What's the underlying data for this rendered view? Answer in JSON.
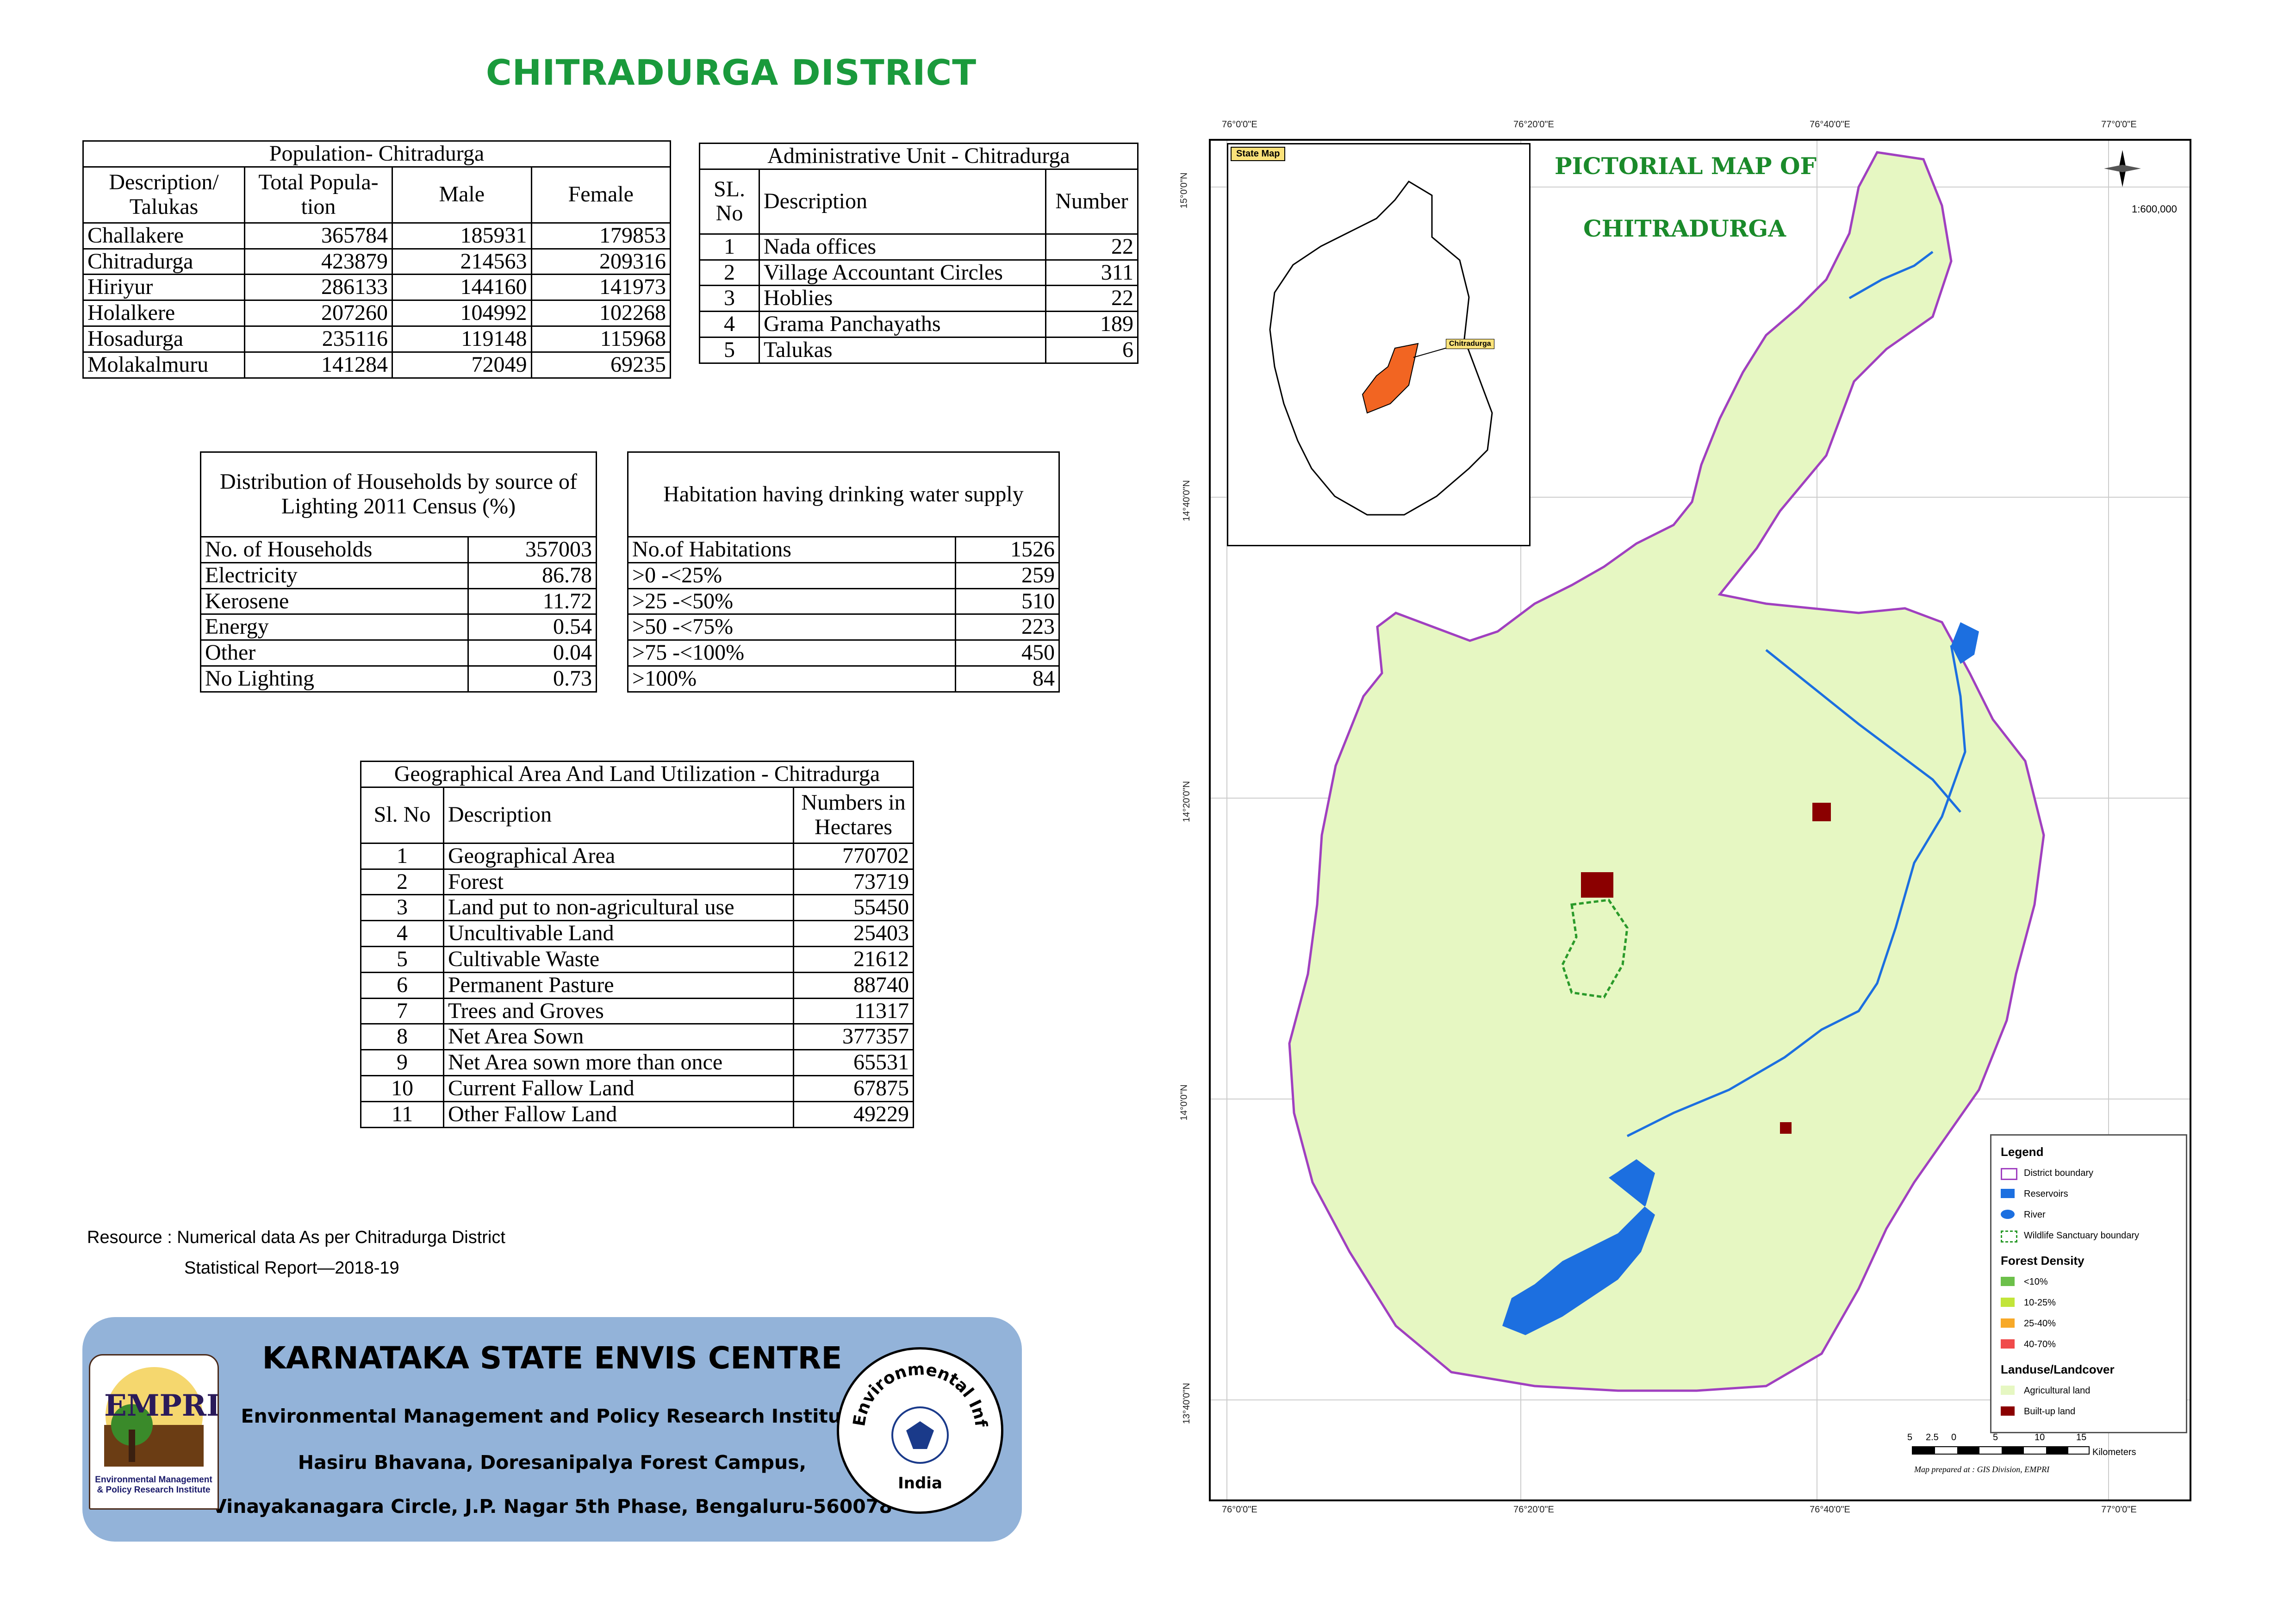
{
  "title": "CHITRADURGA DISTRICT",
  "population": {
    "caption": "Population- Chitradurga",
    "headers": [
      "Description/ Talukas",
      "Total Popula-tion",
      "Male",
      "Female"
    ],
    "rows": [
      [
        "Challakere",
        "365784",
        "185931",
        "179853"
      ],
      [
        "Chitradurga",
        "423879",
        "214563",
        "209316"
      ],
      [
        "Hiriyur",
        "286133",
        "144160",
        "141973"
      ],
      [
        "Holalkere",
        "207260",
        "104992",
        "102268"
      ],
      [
        "Hosadurga",
        "235116",
        "119148",
        "115968"
      ],
      [
        "Molakalmuru",
        "141284",
        "72049",
        "69235"
      ]
    ]
  },
  "admin": {
    "caption": "Administrative Unit - Chitradurga",
    "headers": [
      "SL. No",
      "Description",
      "Number"
    ],
    "rows": [
      [
        "1",
        "Nada offices",
        "22"
      ],
      [
        "2",
        "Village Accountant Circles",
        "311"
      ],
      [
        "3",
        "Hoblies",
        "22"
      ],
      [
        "4",
        "Grama Panchayaths",
        "189"
      ],
      [
        "5",
        "Talukas",
        "6"
      ]
    ]
  },
  "lighting": {
    "caption": "Distribution of Households by source of Lighting 2011 Census (%)",
    "rows": [
      [
        "No. of Households",
        "357003"
      ],
      [
        "Electricity",
        "86.78"
      ],
      [
        "Kerosene",
        "11.72"
      ],
      [
        "Energy",
        "0.54"
      ],
      [
        "Other",
        "0.04"
      ],
      [
        "No Lighting",
        "0.73"
      ]
    ]
  },
  "water": {
    "caption": "Habitation having drinking water supply",
    "rows": [
      [
        "No.of Habitations",
        "1526"
      ],
      [
        ">0 -<25%",
        "259"
      ],
      [
        ">25 -<50%",
        "510"
      ],
      [
        ">50 -<75%",
        "223"
      ],
      [
        ">75 -<100%",
        "450"
      ],
      [
        ">100%",
        "84"
      ]
    ]
  },
  "land": {
    "caption": "Geographical Area  And Land Utilization - Chitradurga",
    "headers": [
      "Sl. No",
      "Description",
      "Numbers in Hectares"
    ],
    "rows": [
      [
        "1",
        "Geographical Area",
        "770702"
      ],
      [
        "2",
        "Forest",
        "73719"
      ],
      [
        "3",
        "Land put to non-agricultural use",
        "55450"
      ],
      [
        "4",
        "Uncultivable Land",
        "25403"
      ],
      [
        "5",
        "Cultivable Waste",
        "21612"
      ],
      [
        "6",
        "Permanent Pasture",
        "88740"
      ],
      [
        "7",
        "Trees and Groves",
        "11317"
      ],
      [
        "8",
        "Net Area Sown",
        "377357"
      ],
      [
        "9",
        "Net Area sown more than once",
        "65531"
      ],
      [
        "10",
        "Current Fallow Land",
        "67875"
      ],
      [
        "11",
        "Other Fallow Land",
        "49229"
      ]
    ]
  },
  "resource_note": {
    "line1": "Resource : Numerical data As per Chitradurga District",
    "line2": "Statistical Report—2018-19"
  },
  "banner": {
    "heading": "KARNATAKA STATE ENVIS CENTRE",
    "line1": "Environmental Management and Policy Research Institute",
    "line2": "Hasiru Bhavana, Doresanipalya Forest Campus,",
    "line3": "Vinayakanagara Circle, J.P. Nagar 5th Phase, Bengaluru-560078",
    "logo_left": "EMPRI",
    "logo_left_caption": "Environmental Management & Policy Research Institute",
    "logo_right": "Environmental Information System",
    "logo_right_sub": "India"
  },
  "map": {
    "title_line1": "PICTORIAL MAP OF",
    "title_line2": "CHITRADURGA",
    "inset_label": "State Map",
    "inset_district": "Chitradurga",
    "scale_ratio": "1:600,000",
    "lon_labels": [
      "76°0'0\"E",
      "76°20'0\"E",
      "76°40'0\"E",
      "77°0'0\"E"
    ],
    "lat_labels": [
      "15°0'0\"N",
      "14°40'0\"N",
      "14°20'0\"N",
      "14°0'0\"N",
      "13°40'0\"N"
    ],
    "scalebar_ticks": [
      "5",
      "2.5",
      "0",
      "5",
      "10",
      "15"
    ],
    "scalebar_unit": "Kilometers",
    "credit": "Map prepared at : GIS Division, EMPRI",
    "colors": {
      "agri": "#e6f7c2",
      "builtup": "#8b0000",
      "river": "#1c6fe0",
      "boundary": "#a040c0",
      "sanctuary": "#2a9a2a",
      "district_inset": "#f26522"
    }
  },
  "legend": {
    "title": "Legend",
    "items": [
      "District boundary",
      "Reservoirs",
      "River",
      "Wildlife Sanctuary boundary"
    ],
    "forest_title": "Forest Density",
    "forest_items": [
      "<10%",
      "10-25%",
      "25-40%",
      "40-70%"
    ],
    "landuse_title": "Landuse/Landcover",
    "landuse_items": [
      "Agricultural land",
      "Built-up land"
    ]
  }
}
